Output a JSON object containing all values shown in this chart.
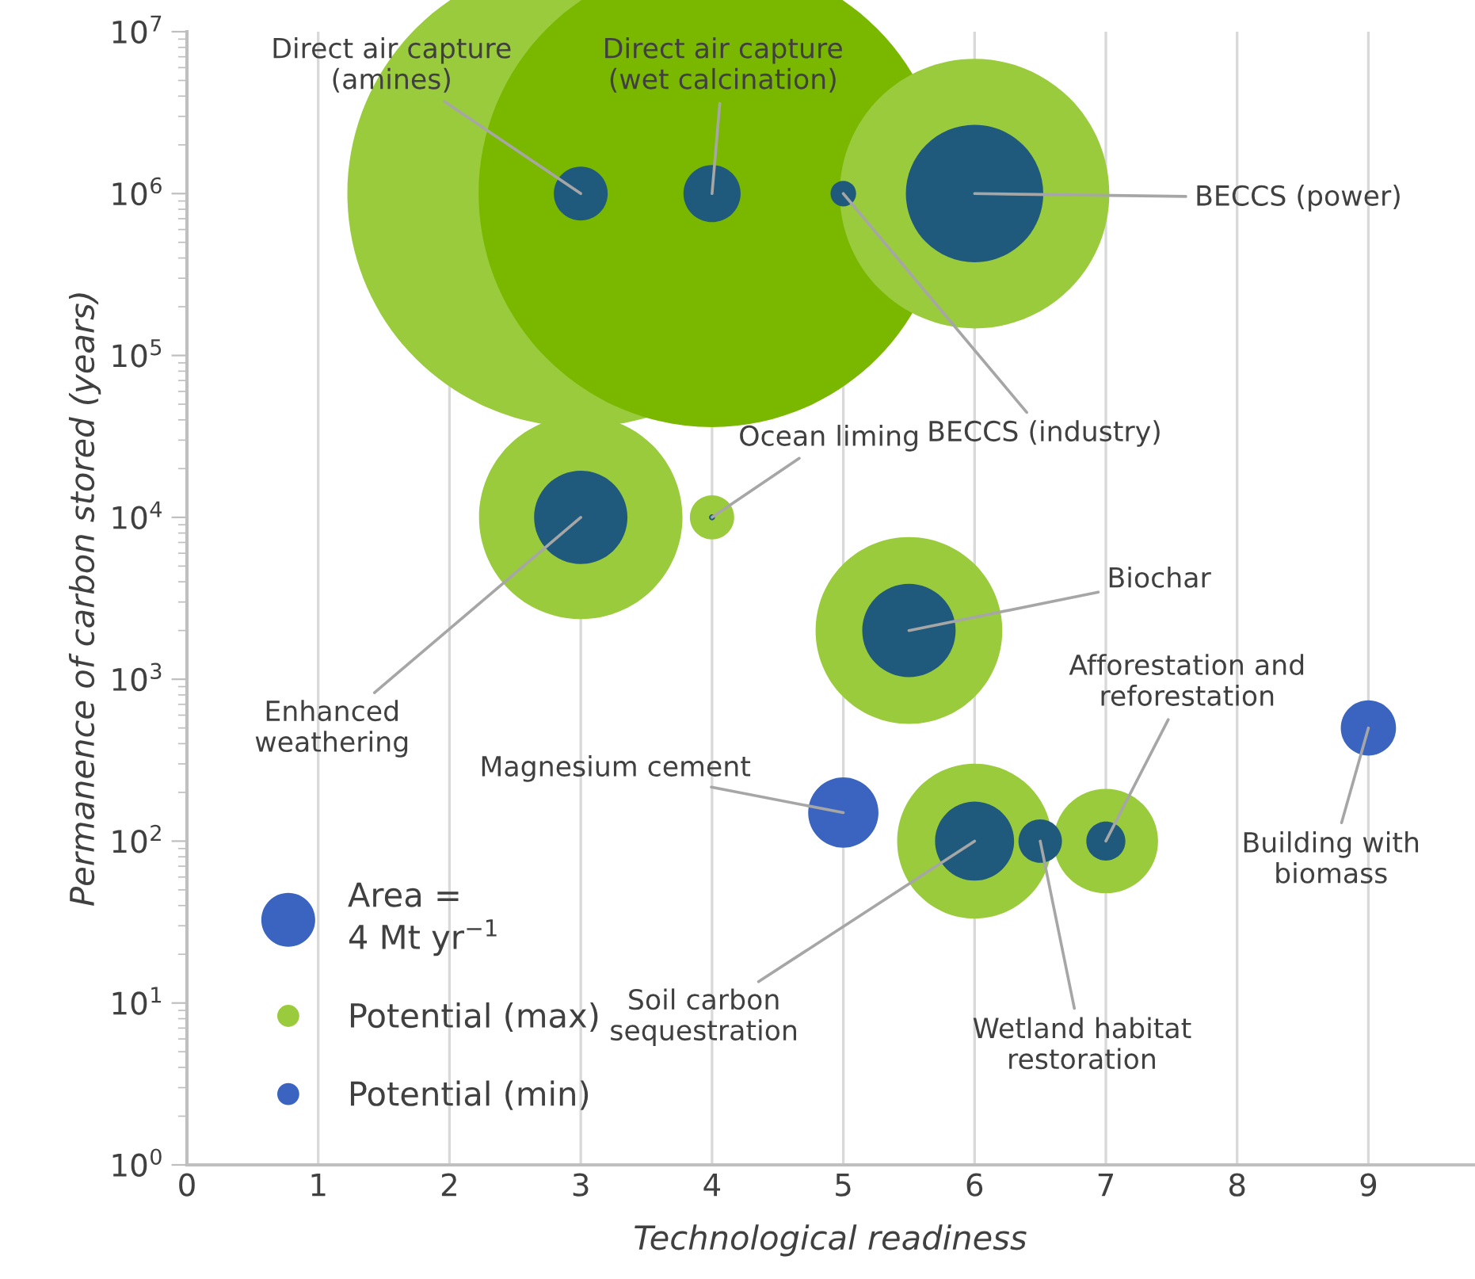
{
  "chart_data": {
    "type": "bubble",
    "xlabel": "Technological readiness",
    "ylabel": "Permanence of carbon stored (years)",
    "xlim": [
      0,
      9.8
    ],
    "xticks": [
      0,
      1,
      2,
      3,
      4,
      5,
      6,
      7,
      8,
      9
    ],
    "ylim": [
      1,
      10000000
    ],
    "log": "y",
    "yticks": [
      {
        "value": 1,
        "label": "10$^{0}$"
      },
      {
        "value": 10,
        "label": "10$^{1}$"
      },
      {
        "value": 100,
        "label": "10$^{2}$"
      },
      {
        "value": 1000,
        "label": "10$^{3}$"
      },
      {
        "value": 10000,
        "label": "10$^{4}$"
      },
      {
        "value": 100000,
        "label": "10$^{5}$"
      },
      {
        "value": 1000000,
        "label": "10$^{6}$"
      },
      {
        "value": 10000000,
        "label": "10$^{7}$"
      }
    ],
    "grid": "x",
    "legend": "bottom left",
    "size_legend": [
      {
        "value": 4,
        "label": "Area =\n4 Mt yr$^{−1}$"
      }
    ],
    "series": [
      {
        "name": "Potential (max)",
        "color": "#9acb3c",
        "colors": [
          "#9acb3c",
          "#7ab800",
          "#9acb3c",
          "#9acb3c",
          "#9acb3c",
          "#9acb3c",
          "#9acb3c",
          "#9acb3c"
        ],
        "x": [
          3,
          4,
          6,
          3,
          4,
          5.5,
          6,
          7
        ],
        "values": [
          1000000,
          1000000,
          1000000,
          10000,
          10000,
          2000,
          100,
          100
        ],
        "sizes": [
          300,
          300,
          100,
          57,
          2.7,
          48,
          33,
          15
        ]
      },
      {
        "name": "Potential (min)",
        "color": "#3a64c0",
        "colors": [
          "#1f5a7c",
          "#1f5a7c",
          "#1f5a7c",
          "#1f5a7c",
          "#1f5a7c",
          "#1f5a7c",
          "#1f5a7c",
          "#3a64c0",
          "#1f5a7c",
          "#1f5a7c",
          "#1f5a7c",
          "#3a64c0"
        ],
        "x": [
          3,
          4,
          5,
          6,
          3,
          4,
          5.5,
          5,
          6,
          6.5,
          7,
          9
        ],
        "values": [
          1000000,
          1000000,
          1000000,
          1000000,
          10000,
          10000,
          2000,
          150,
          100,
          100,
          100,
          500
        ],
        "sizes": [
          4,
          4.5,
          0.9,
          26,
          12,
          0.05,
          12,
          6.8,
          8.6,
          2.6,
          2.1,
          4.2
        ]
      }
    ],
    "annotations": [
      {
        "text": "Direct air capture\n(amines)",
        "x": 3,
        "y": 1000000
      },
      {
        "text": "Direct air capture\n(wet calcination)",
        "x": 4,
        "y": 1000000
      },
      {
        "text": "BECCS (industry)",
        "x": 5,
        "y": 1000000
      },
      {
        "text": "BECCS (power)",
        "x": 6,
        "y": 1000000
      },
      {
        "text": "Ocean liming",
        "x": 4,
        "y": 10000
      },
      {
        "text": "Enhanced\nweathering",
        "x": 3,
        "y": 10000
      },
      {
        "text": "Biochar",
        "x": 5.5,
        "y": 2000
      },
      {
        "text": "Magnesium cement",
        "x": 5,
        "y": 150
      },
      {
        "text": "Afforestation and\nreforestation",
        "x": 7,
        "y": 100
      },
      {
        "text": "Building with\nbiomass",
        "x": 9,
        "y": 500
      },
      {
        "text": "Soil carbon\nsequestration",
        "x": 6,
        "y": 100
      },
      {
        "text": "Wetland habitat\nrestoration",
        "x": 6.5,
        "y": 100
      }
    ]
  }
}
